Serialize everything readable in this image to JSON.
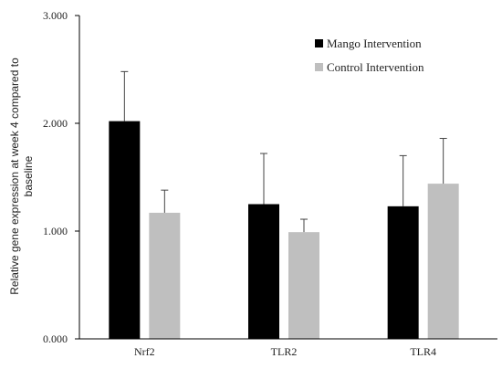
{
  "chart_data": {
    "type": "bar",
    "title": "",
    "xlabel": "",
    "ylabel_lines": [
      "Relative gene expression at week 4 compared to",
      "baseline"
    ],
    "categories": [
      "Nrf2",
      "TLR2",
      "TLR4"
    ],
    "series": [
      {
        "name": "Mango Intervention",
        "color": "#000000",
        "values": [
          2.02,
          1.25,
          1.23
        ],
        "error_upper": [
          0.46,
          0.47,
          0.47
        ]
      },
      {
        "name": "Control Intervention",
        "color": "#bfbfbf",
        "values": [
          1.17,
          0.99,
          1.44
        ],
        "error_upper": [
          0.21,
          0.12,
          0.42
        ]
      }
    ],
    "ylim": [
      0,
      3
    ],
    "yticks": [
      0,
      1,
      2,
      3
    ],
    "ytick_labels": [
      "0.000",
      "1.000",
      "2.000",
      "3.000"
    ],
    "grid": false,
    "legend_position": "top-right"
  }
}
